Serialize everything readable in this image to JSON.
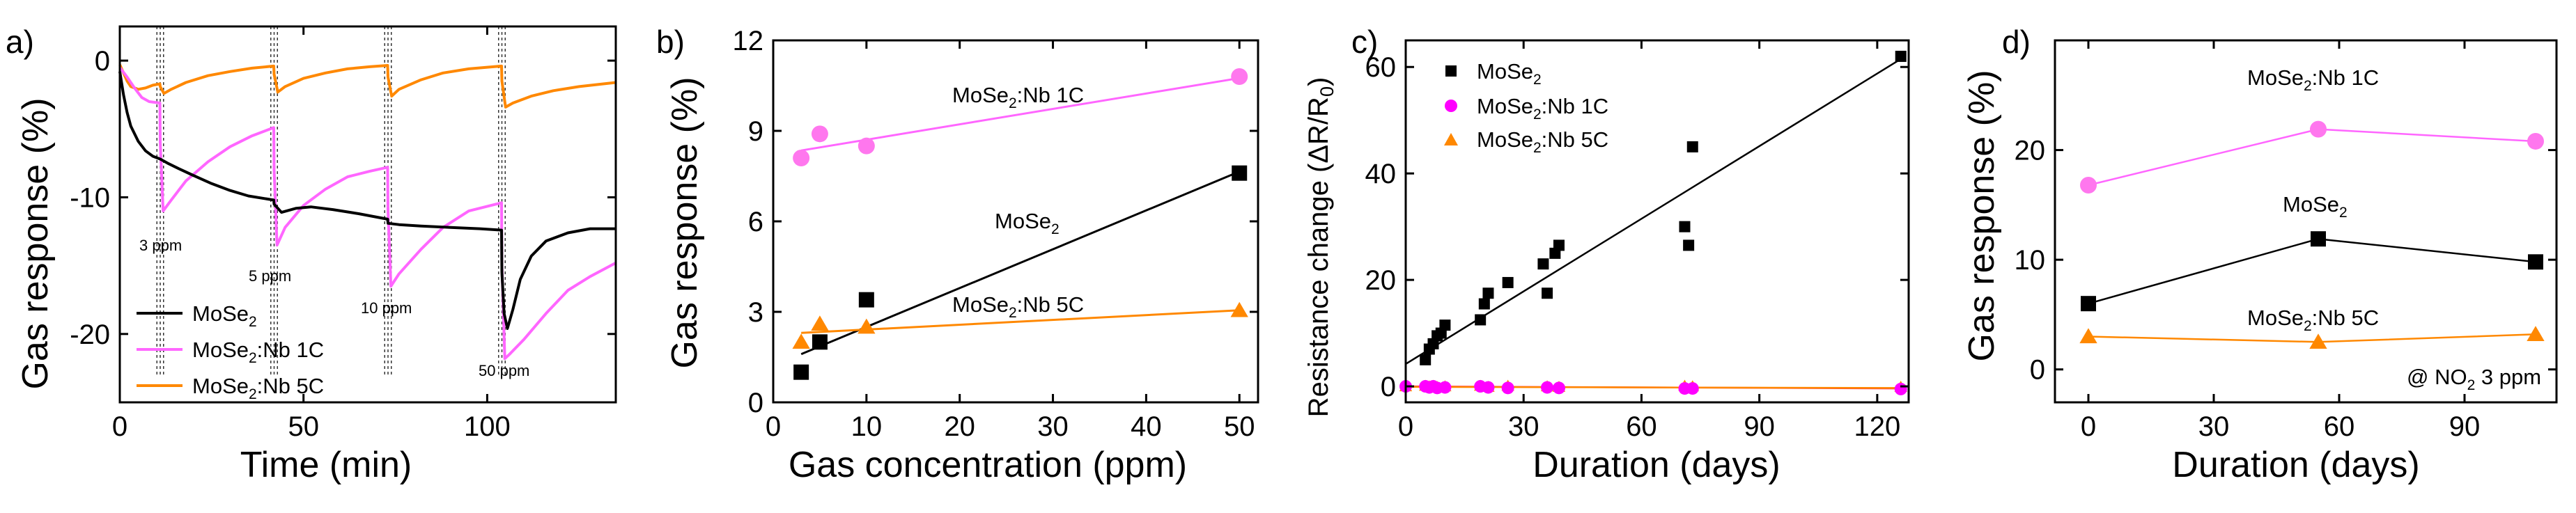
{
  "colors": {
    "mose2": "#000000",
    "nb1c": "#ff66ff",
    "nb1c_marker": "#ff77ee",
    "nb5c": "#ff8800",
    "nb1c_line_c": "#ff00ff",
    "fit_c": "#ff3355"
  },
  "chart_data": [
    {
      "id": "a",
      "panel_label": "a)",
      "type": "line",
      "title": "",
      "xlabel": "Time (min)",
      "ylabel": "Gas response (%)",
      "xlim": [
        0,
        135
      ],
      "ylim": [
        -25,
        2.5
      ],
      "xticks": [
        "0",
        "50",
        "100"
      ],
      "xtick_values": [
        0,
        50,
        100
      ],
      "yticks": [
        "0",
        "-10",
        "-20"
      ],
      "ytick_values": [
        0,
        -10,
        -20
      ],
      "legend": [
        "MoSe2",
        "MoSe2:Nb 1C",
        "MoSe2:Nb 5C"
      ],
      "annotations": [
        "3 ppm",
        "5 ppm",
        "10 ppm",
        "50 ppm"
      ],
      "exposure_starts": [
        11,
        42,
        73,
        104
      ],
      "series": [
        {
          "name": "MoSe2",
          "key": "mose2",
          "x": [
            0,
            1,
            2,
            3,
            5,
            7,
            9,
            11,
            13,
            16,
            20,
            25,
            30,
            35,
            41.9,
            42,
            44,
            48,
            52,
            58,
            65,
            72.9,
            73,
            76,
            82,
            90,
            98,
            103.9,
            104,
            104.6,
            105.5,
            107,
            109,
            112,
            116,
            122,
            128,
            135
          ],
          "y": [
            -0.8,
            -2.5,
            -3.8,
            -4.8,
            -5.9,
            -6.6,
            -7.0,
            -7.2,
            -7.5,
            -7.9,
            -8.4,
            -9.0,
            -9.5,
            -9.9,
            -10.2,
            -10.5,
            -11.1,
            -10.8,
            -10.7,
            -10.9,
            -11.2,
            -11.6,
            -11.9,
            -12.0,
            -12.1,
            -12.2,
            -12.3,
            -12.4,
            -15.5,
            -18.5,
            -19.6,
            -18.2,
            -16.0,
            -14.3,
            -13.2,
            -12.6,
            -12.3,
            -12.3
          ]
        },
        {
          "name": "MoSe2:Nb 1C",
          "key": "nb1c",
          "x": [
            0,
            2,
            4,
            6,
            8,
            10.9,
            11,
            11.8,
            14,
            18,
            24,
            30,
            36,
            41.9,
            42,
            42.8,
            45,
            50,
            56,
            62,
            68,
            72.9,
            73,
            73.8,
            76,
            82,
            88,
            95,
            103.9,
            104,
            104.8,
            106,
            110,
            116,
            122,
            128,
            135
          ],
          "y": [
            -0.5,
            -1.2,
            -2.0,
            -2.7,
            -3.0,
            -3.1,
            -6.0,
            -11.0,
            -10.2,
            -8.8,
            -7.4,
            -6.3,
            -5.5,
            -4.9,
            -8.0,
            -13.5,
            -12.2,
            -10.6,
            -9.4,
            -8.5,
            -8.1,
            -7.8,
            -11.0,
            -16.5,
            -15.6,
            -13.8,
            -12.2,
            -11.0,
            -10.4,
            -15.0,
            -21.8,
            -21.5,
            -20.4,
            -18.5,
            -16.8,
            -15.8,
            -14.8
          ]
        },
        {
          "name": "MoSe2:Nb 5C",
          "key": "nb5c",
          "x": [
            0,
            1,
            2,
            3,
            5,
            7,
            9,
            10.9,
            11,
            12,
            14,
            18,
            24,
            30,
            36,
            41.9,
            42,
            43,
            45,
            50,
            56,
            62,
            68,
            72.9,
            73,
            74,
            76,
            82,
            88,
            95,
            103.9,
            104,
            105,
            107,
            112,
            118,
            125,
            135
          ],
          "y": [
            -0.3,
            -0.9,
            -1.5,
            -1.9,
            -2.1,
            -2.0,
            -1.8,
            -1.7,
            -1.9,
            -2.4,
            -2.1,
            -1.6,
            -1.1,
            -0.8,
            -0.55,
            -0.4,
            -1.0,
            -2.3,
            -1.9,
            -1.3,
            -0.9,
            -0.6,
            -0.45,
            -0.35,
            -1.2,
            -2.6,
            -2.1,
            -1.4,
            -0.9,
            -0.6,
            -0.4,
            -1.5,
            -3.4,
            -3.1,
            -2.6,
            -2.2,
            -1.9,
            -1.6
          ]
        }
      ]
    },
    {
      "id": "b",
      "panel_label": "b)",
      "type": "scatter",
      "title": "",
      "xlabel": "Gas concentration (ppm)",
      "ylabel": "Gas response (%)",
      "xlim": [
        0,
        52
      ],
      "ylim": [
        0,
        12
      ],
      "xticks": [
        "0",
        "10",
        "20",
        "30",
        "40",
        "50"
      ],
      "xtick_values": [
        0,
        10,
        20,
        30,
        40,
        50
      ],
      "yticks": [
        "0",
        "3",
        "6",
        "9",
        "12"
      ],
      "ytick_values": [
        0,
        3,
        6,
        9,
        12
      ],
      "series": [
        {
          "name": "MoSe2:Nb 1C",
          "key": "nb1c",
          "marker": "circle",
          "x": [
            3,
            5,
            10,
            50
          ],
          "y": [
            8.1,
            8.9,
            8.5,
            10.8
          ],
          "fit": [
            [
              3,
              8.35
            ],
            [
              50,
              10.75
            ]
          ],
          "label": "MoSe2:Nb 1C"
        },
        {
          "name": "MoSe2",
          "key": "mose2",
          "marker": "square",
          "x": [
            3,
            5,
            10,
            50
          ],
          "y": [
            1.0,
            2.0,
            3.4,
            7.6
          ],
          "fit": [
            [
              3,
              1.6
            ],
            [
              50,
              7.65
            ]
          ],
          "label": "MoSe2"
        },
        {
          "name": "MoSe2:Nb 5C",
          "key": "nb5c",
          "marker": "triangle",
          "x": [
            3,
            5,
            10,
            50
          ],
          "y": [
            2.0,
            2.6,
            2.5,
            3.05
          ],
          "fit": [
            [
              3,
              2.3
            ],
            [
              50,
              3.05
            ]
          ],
          "label": "MoSe2:Nb 5C"
        }
      ]
    },
    {
      "id": "c",
      "panel_label": "c)",
      "type": "scatter",
      "title": "",
      "xlabel": "Duration (days)",
      "ylabel": "Resistance change (ΔR/R0)",
      "xlim": [
        0,
        128
      ],
      "ylim": [
        -3,
        65
      ],
      "xticks": [
        "0",
        "30",
        "60",
        "90",
        "120"
      ],
      "xtick_values": [
        0,
        30,
        60,
        90,
        120
      ],
      "yticks": [
        "0",
        "20",
        "40",
        "60"
      ],
      "ytick_values": [
        0,
        20,
        40,
        60
      ],
      "legend": [
        "MoSe2",
        "MoSe2:Nb 1C",
        "MoSe2:Nb 5C"
      ],
      "series": [
        {
          "name": "MoSe2",
          "key": "mose2",
          "marker": "square",
          "x": [
            5,
            6,
            7,
            8,
            9,
            10,
            19,
            20,
            21,
            26,
            35,
            36,
            38,
            39,
            71,
            72,
            73,
            126
          ],
          "y": [
            5,
            7,
            8,
            9.5,
            10,
            11.5,
            12.5,
            15.5,
            17.5,
            19.5,
            23,
            17.5,
            25,
            26.5,
            30,
            26.5,
            45,
            62
          ],
          "fit": [
            [
              0,
              4.2
            ],
            [
              126,
              61.5
            ]
          ]
        },
        {
          "name": "MoSe2:Nb 1C",
          "key": "nb1c_line_c",
          "marker": "circle",
          "x": [
            0,
            5,
            6,
            7,
            8,
            10,
            19,
            21,
            26,
            36,
            39,
            71,
            73,
            126
          ],
          "y": [
            0,
            0,
            -0.2,
            0,
            -0.3,
            -0.2,
            0,
            -0.2,
            -0.3,
            -0.2,
            -0.3,
            -0.4,
            -0.4,
            -0.5
          ],
          "fit": [
            [
              0,
              0
            ],
            [
              126,
              -0.4
            ]
          ]
        },
        {
          "name": "MoSe2:Nb 5C",
          "key": "nb5c",
          "marker": "triangle",
          "x": [
            0,
            5,
            6,
            7,
            8,
            10,
            19,
            21,
            26,
            36,
            39,
            71,
            73,
            126
          ],
          "y": [
            0,
            0.1,
            0,
            0.1,
            -0.1,
            0,
            0.1,
            -0.1,
            0.1,
            0,
            -0.1,
            0.1,
            0,
            -0.1
          ],
          "fit": [
            [
              0,
              -0.1
            ],
            [
              126,
              -0.3
            ]
          ]
        }
      ]
    },
    {
      "id": "d",
      "panel_label": "d)",
      "type": "line",
      "title": "",
      "xlabel": "Duration (days)",
      "ylabel": "Gas response (%)",
      "xlim": [
        -8,
        112
      ],
      "ylim": [
        -3,
        30
      ],
      "xticks": [
        "0",
        "30",
        "60",
        "90"
      ],
      "xtick_values": [
        0,
        30,
        60,
        90
      ],
      "yticks": [
        "0",
        "10",
        "20"
      ],
      "ytick_values": [
        0,
        10,
        20
      ],
      "annotation": "@ NO2 3 ppm",
      "series": [
        {
          "name": "MoSe2:Nb 1C",
          "key": "nb1c",
          "marker": "circle",
          "x": [
            0,
            55,
            107
          ],
          "y": [
            16.8,
            21.9,
            20.8
          ],
          "label": "MoSe2:Nb 1C"
        },
        {
          "name": "MoSe2",
          "key": "mose2",
          "marker": "square",
          "x": [
            0,
            55,
            107
          ],
          "y": [
            6.0,
            11.9,
            9.8
          ],
          "label": "MoSe2"
        },
        {
          "name": "MoSe2:Nb 5C",
          "key": "nb5c",
          "marker": "triangle",
          "x": [
            0,
            55,
            107
          ],
          "y": [
            3.0,
            2.5,
            3.2
          ],
          "label": "MoSe2:Nb 5C"
        }
      ]
    }
  ]
}
